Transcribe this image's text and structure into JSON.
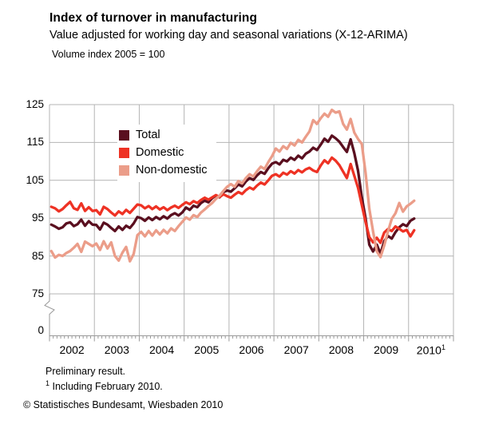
{
  "header": {
    "title": "Index of turnover in manufacturing",
    "subtitle": "Value adjusted for working day and seasonal variations (X-12-ARIMA)",
    "index_note": "Volume index 2005 = 100"
  },
  "footer": {
    "preliminary": "Preliminary result.",
    "footnote_sup": "1",
    "footnote_text": " Including February 2010.",
    "copyright": "© Statistisches Bundesamt, Wiesbaden 2010"
  },
  "chart_data": {
    "type": "line",
    "title": "Index of turnover in manufacturing",
    "x_unit": "month",
    "x_range": [
      "2002-01",
      "2010-02"
    ],
    "grid": true,
    "legend_position": "inside-top-left",
    "y_axis": {
      "ticks": [
        125,
        115,
        105,
        95,
        85,
        75
      ],
      "zero_label": "0",
      "broken_axis": true,
      "range_shown": [
        75,
        125
      ]
    },
    "x_labels": [
      {
        "label": "2002"
      },
      {
        "label": "2003"
      },
      {
        "label": "2004"
      },
      {
        "label": "2005"
      },
      {
        "label": "2006"
      },
      {
        "label": "2007"
      },
      {
        "label": "2008"
      },
      {
        "label": "2009"
      },
      {
        "label": "2010",
        "sup": "1"
      }
    ],
    "colors": {
      "grid": "#b4b4b4",
      "axis": "#999999",
      "text": "#000000"
    },
    "series": [
      {
        "name": "Total",
        "color": "#5a0f1f",
        "values": [
          93.3,
          92.8,
          92.2,
          92.6,
          93.6,
          93.9,
          92.9,
          93.4,
          94.6,
          93.0,
          94.2,
          93.3,
          93.2,
          92.0,
          93.8,
          93.3,
          92.4,
          91.6,
          92.8,
          91.9,
          93.0,
          92.4,
          93.6,
          95.3,
          95.0,
          94.3,
          95.2,
          94.5,
          95.3,
          94.7,
          95.5,
          94.9,
          95.8,
          96.3,
          95.7,
          96.5,
          97.8,
          97.2,
          98.3,
          97.9,
          99.0,
          99.6,
          99.2,
          100.3,
          101.0,
          100.5,
          101.9,
          102.3,
          102.0,
          102.9,
          103.9,
          103.4,
          104.7,
          105.6,
          105.1,
          106.3,
          107.2,
          106.7,
          108.2,
          109.4,
          109.8,
          109.2,
          110.4,
          110.0,
          111.0,
          110.4,
          111.5,
          110.8,
          112.0,
          112.6,
          113.6,
          113.0,
          114.4,
          116.0,
          115.2,
          116.8,
          116.1,
          115.2,
          113.8,
          112.5,
          115.8,
          112.2,
          107.5,
          100.5,
          95.0,
          88.0,
          86.2,
          88.0,
          85.6,
          88.9,
          90.3,
          89.6,
          91.3,
          92.6,
          93.4,
          92.9,
          94.3,
          94.9
        ]
      },
      {
        "name": "Domestic",
        "color": "#ee3224",
        "values": [
          98.0,
          97.6,
          96.8,
          97.4,
          98.4,
          99.3,
          97.6,
          97.2,
          98.9,
          96.9,
          97.9,
          96.9,
          97.1,
          96.0,
          98.0,
          97.4,
          96.5,
          95.7,
          96.8,
          96.1,
          97.2,
          96.4,
          97.5,
          98.6,
          98.4,
          97.6,
          98.2,
          97.4,
          98.1,
          97.3,
          97.9,
          97.1,
          97.8,
          98.3,
          97.7,
          98.5,
          99.2,
          98.7,
          99.5,
          99.0,
          99.8,
          100.4,
          99.9,
          100.5,
          101.1,
          100.6,
          101.3,
          100.8,
          100.4,
          101.2,
          101.9,
          101.4,
          102.4,
          103.1,
          102.6,
          103.6,
          104.4,
          103.9,
          105.0,
          106.2,
          106.6,
          106.0,
          107.0,
          106.5,
          107.4,
          106.8,
          107.7,
          107.1,
          107.9,
          108.3,
          107.6,
          107.2,
          108.9,
          110.3,
          109.5,
          111.0,
          110.2,
          109.0,
          107.3,
          105.6,
          109.3,
          106.2,
          103.0,
          98.5,
          94.0,
          90.0,
          88.6,
          89.8,
          88.5,
          91.2,
          92.1,
          91.6,
          92.8,
          92.2,
          91.5,
          91.9,
          90.2,
          91.8
        ]
      },
      {
        "name": "Non-domestic",
        "color": "#eb9d89",
        "values": [
          86.3,
          84.6,
          85.3,
          85.0,
          85.8,
          86.3,
          87.2,
          88.2,
          86.1,
          88.8,
          88.2,
          87.6,
          88.3,
          86.6,
          88.9,
          87.0,
          88.6,
          85.0,
          83.8,
          85.9,
          87.4,
          83.6,
          85.5,
          90.5,
          91.4,
          90.2,
          91.6,
          90.4,
          91.8,
          90.7,
          91.9,
          91.0,
          92.3,
          91.6,
          92.9,
          94.0,
          95.2,
          94.6,
          95.8,
          95.3,
          96.5,
          97.3,
          98.2,
          99.0,
          100.1,
          101.0,
          102.2,
          103.3,
          104.0,
          103.3,
          104.8,
          104.2,
          105.6,
          106.6,
          106.0,
          107.4,
          108.6,
          108.0,
          109.8,
          111.4,
          113.4,
          112.6,
          114.0,
          113.3,
          114.9,
          114.2,
          115.7,
          115.0,
          116.5,
          117.9,
          120.9,
          119.9,
          121.4,
          122.6,
          121.8,
          123.6,
          122.9,
          123.2,
          119.9,
          118.4,
          121.2,
          117.6,
          115.9,
          114.6,
          107.0,
          97.5,
          91.5,
          86.2,
          84.7,
          87.8,
          91.5,
          94.8,
          96.3,
          99.0,
          96.7,
          98.1,
          98.8,
          99.6
        ]
      }
    ]
  }
}
